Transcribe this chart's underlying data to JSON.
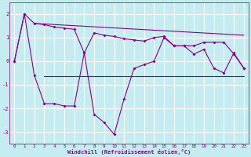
{
  "x": [
    0,
    1,
    2,
    3,
    4,
    5,
    6,
    7,
    8,
    9,
    10,
    11,
    12,
    13,
    14,
    15,
    16,
    17,
    18,
    19,
    20,
    21,
    22,
    23
  ],
  "zigzag_line": [
    0.0,
    2.0,
    -0.6,
    -1.8,
    -1.8,
    -1.9,
    -1.9,
    0.35,
    -2.25,
    -2.6,
    -3.1,
    -1.6,
    -0.3,
    -0.15,
    0.0,
    1.0,
    0.65,
    0.65,
    0.3,
    0.5,
    -0.3,
    -0.5,
    0.35,
    -0.3
  ],
  "smooth_line": [
    0.0,
    2.0,
    1.6,
    1.55,
    1.45,
    1.4,
    1.35,
    0.35,
    1.2,
    1.1,
    1.05,
    0.95,
    0.9,
    0.85,
    1.0,
    1.05,
    0.65,
    0.65,
    0.65,
    0.8,
    0.8,
    0.8,
    0.3,
    -0.3
  ],
  "horizontal_line_y": -0.65,
  "horizontal_line_x_start": 3,
  "horizontal_line_x_end": 23,
  "trend_x_start": 2,
  "trend_x_end": 23,
  "trend_y_start": 1.6,
  "trend_y_end": 1.1,
  "xlim": [
    -0.5,
    23.5
  ],
  "ylim": [
    -3.5,
    2.5
  ],
  "yticks": [
    -3,
    -2,
    -1,
    0,
    1,
    2
  ],
  "xticks": [
    0,
    1,
    2,
    3,
    4,
    5,
    6,
    7,
    8,
    9,
    10,
    11,
    12,
    13,
    14,
    15,
    16,
    17,
    18,
    19,
    20,
    21,
    22,
    23
  ],
  "xlabel": "Windchill (Refroidissement éolien,°C)",
  "line_color": "#880088",
  "bg_color": "#C5ECF0",
  "grid_color": "#FFFFFF",
  "xlabel_color": "#880088",
  "tick_color": "#880088",
  "marker": "D",
  "marker_size": 2.0,
  "linewidth": 0.8
}
